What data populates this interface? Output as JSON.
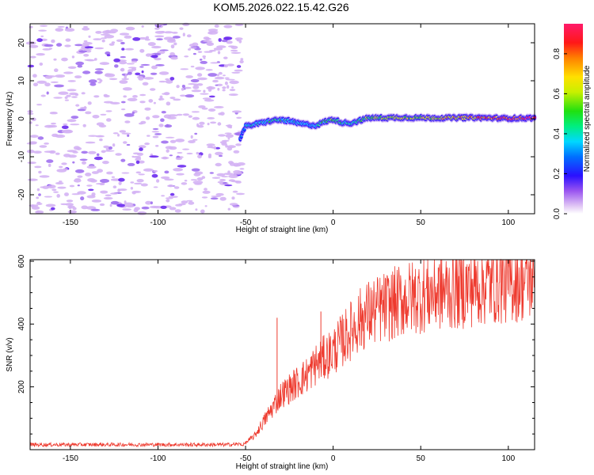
{
  "title": "KOM5.2026.022.15.42.G26",
  "chart_data": [
    {
      "type": "heatmap",
      "xlabel": "Height of straight line (km)",
      "ylabel": "Frequency (Hz)",
      "xlim": [
        -173,
        115
      ],
      "ylim": [
        -25,
        25
      ],
      "xticks": [
        -150,
        -100,
        -50,
        0,
        50,
        100
      ],
      "yticks": [
        -20,
        -10,
        0,
        10,
        20
      ],
      "colorbar": {
        "label": "Normalized spectral amplitude",
        "range": [
          0,
          0.95
        ],
        "ticks": [
          0.0,
          0.2,
          0.4,
          0.6,
          0.8
        ]
      },
      "signal_track": {
        "x": [
          -53,
          -50,
          -45,
          -40,
          -35,
          -30,
          -25,
          -20,
          -15,
          -10,
          -5,
          0,
          5,
          10,
          15,
          20,
          40,
          60,
          80,
          100,
          115
        ],
        "freq": [
          -5,
          -2,
          -1.5,
          -1,
          -0.5,
          -0.3,
          -0.6,
          -1.2,
          -1.5,
          -1.8,
          -0.8,
          -0.2,
          -1.0,
          -1.2,
          -0.5,
          0.2,
          0.3,
          0.2,
          0.3,
          0.1,
          0.2
        ],
        "amplitude": [
          0.25,
          0.3,
          0.35,
          0.35,
          0.4,
          0.4,
          0.35,
          0.35,
          0.3,
          0.3,
          0.4,
          0.45,
          0.4,
          0.35,
          0.4,
          0.5,
          0.55,
          0.6,
          0.7,
          0.8,
          0.85
        ]
      },
      "noise_region": "x < -50"
    },
    {
      "type": "line",
      "xlabel": "Height of straight line (km)",
      "ylabel": "SNR (v/v)",
      "xlim": [
        -173,
        115
      ],
      "ylim": [
        0,
        605
      ],
      "xticks": [
        -150,
        -100,
        -50,
        0,
        50,
        100
      ],
      "yticks": [
        200,
        400,
        600
      ],
      "series": [
        {
          "name": "SNR",
          "color": "#ee3a2e",
          "envelope_x": [
            -173,
            -60,
            -52,
            -45,
            -40,
            -35,
            -30,
            -25,
            -20,
            -15,
            -10,
            -5,
            0,
            5,
            10,
            15,
            20,
            30,
            40,
            50,
            60,
            70,
            80,
            90,
            100,
            115
          ],
          "envelope_y": [
            10,
            10,
            12,
            40,
            80,
            120,
            160,
            180,
            200,
            220,
            250,
            270,
            290,
            320,
            350,
            380,
            400,
            420,
            440,
            455,
            465,
            470,
            480,
            490,
            495,
            505
          ],
          "spikes": [
            {
              "x": -32,
              "y": 420
            },
            {
              "x": -7,
              "y": 440
            },
            {
              "x": 60,
              "y": 580
            },
            {
              "x": 100,
              "y": 605
            }
          ]
        }
      ]
    }
  ]
}
